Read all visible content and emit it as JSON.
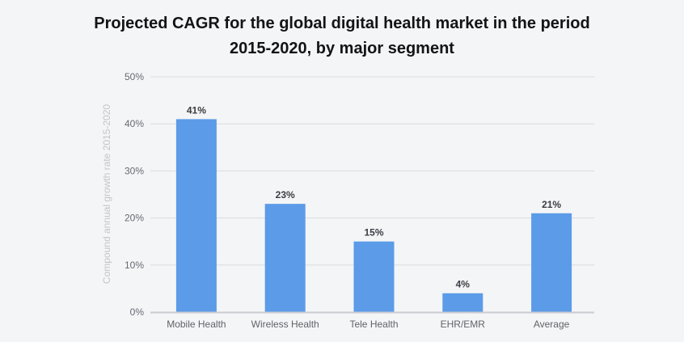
{
  "chart_data": {
    "type": "bar",
    "title_lines": [
      "Projected CAGR for the global digital health market in the period",
      "2015-2020, by major segment"
    ],
    "title": "Projected CAGR for the global digital health market in the period 2015-2020, by major segment",
    "xlabel": "",
    "ylabel": "Compound annual growth rate 2015-2020",
    "categories": [
      "Mobile Health",
      "Wireless Health",
      "Tele Health",
      "EHR/EMR",
      "Average"
    ],
    "values": [
      41,
      23,
      15,
      4,
      21
    ],
    "data_labels": [
      "41%",
      "23%",
      "15%",
      "4%",
      "21%"
    ],
    "ylim": [
      0,
      50
    ],
    "yticks": [
      0,
      10,
      20,
      30,
      40,
      50
    ],
    "ytick_labels": [
      "0%",
      "10%",
      "20%",
      "30%",
      "40%",
      "50%"
    ],
    "grid": true,
    "legend": "none",
    "colors": {
      "bar": "#5b9be8",
      "grid": "#d9dbde",
      "axis": "#c9ccd1",
      "background": "#f4f5f7"
    }
  }
}
